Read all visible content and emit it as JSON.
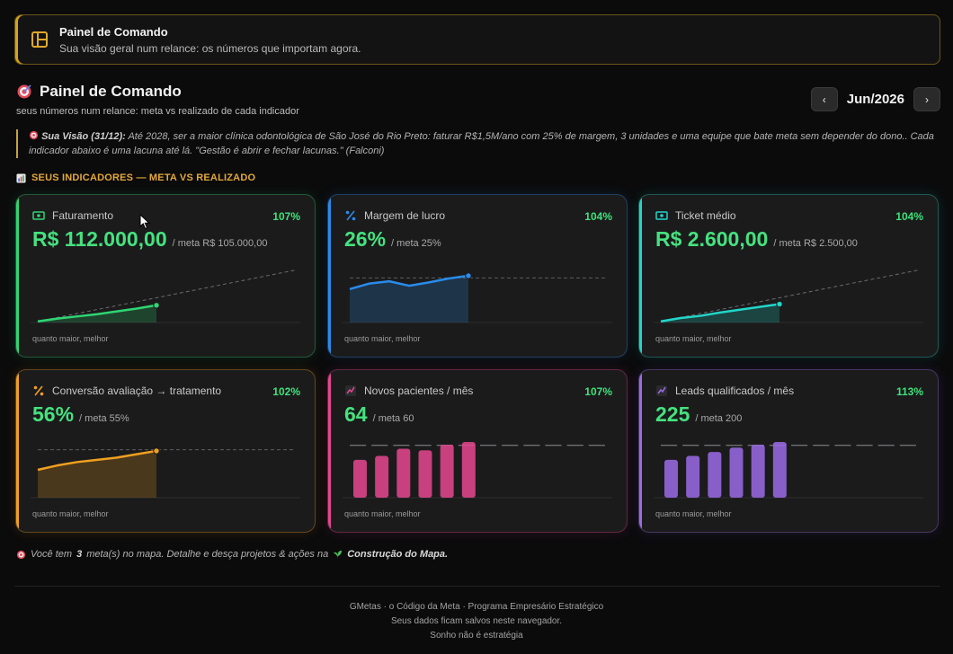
{
  "banner": {
    "title": "Painel de Comando",
    "subtitle": "Sua visão geral num relance: os números que importam agora."
  },
  "page": {
    "title": "Painel de Comando",
    "subtitle": "seus números num relance: meta vs realizado de cada indicador"
  },
  "month_nav": {
    "prev_label": "‹",
    "month": "Jun/2026",
    "next_label": "›"
  },
  "vision": {
    "label": "Sua Visão (31/12):",
    "text": "Até 2028, ser a maior clínica odontológica de São José do Rio Preto: faturar R$1,5M/ano com 25% de margem, 3 unidades e uma equipe que bate meta sem depender do dono.. Cada indicador abaixo é uma lacuna até lá. \"Gestão é abrir e fechar lacunas.\" (Falconi)"
  },
  "section_title": "SEUS INDICADORES — META VS REALIZADO",
  "kpis": [
    {
      "name": "Faturamento",
      "pct": "107%",
      "value": "R$ 112.000,00",
      "meta": "/ meta R$ 105.000,00",
      "foot": "quanto maior, melhor",
      "icon": "cash-icon",
      "color": "#2fd573",
      "chart": "line",
      "series": [
        0.02,
        0.07,
        0.11,
        0.15,
        0.2,
        0.25,
        0.31
      ],
      "trend": [
        0.02,
        0.94
      ]
    },
    {
      "name": "Margem de lucro",
      "pct": "104%",
      "value": "26%",
      "meta": "/ meta 25%",
      "foot": "quanto maior, melhor",
      "icon": "percent-icon",
      "color": "#2a8bea",
      "chart": "line",
      "series": [
        0.6,
        0.7,
        0.74,
        0.66,
        0.72,
        0.79,
        0.84
      ],
      "target_line": 0.8
    },
    {
      "name": "Ticket médio",
      "pct": "104%",
      "value": "R$ 2.600,00",
      "meta": "/ meta R$ 2.500,00",
      "foot": "quanto maior, melhor",
      "icon": "cash-icon",
      "color": "#22d6c8",
      "chart": "line",
      "series": [
        0.02,
        0.08,
        0.12,
        0.18,
        0.23,
        0.28,
        0.33
      ],
      "trend": [
        0.02,
        0.94
      ]
    },
    {
      "name": "Conversão avaliação → tratamento",
      "pct": "102%",
      "value": "56%",
      "meta": "/ meta 55%",
      "foot": "quanto maior, melhor",
      "icon": "percent-icon",
      "color": "#f0a020",
      "chart": "line",
      "series": [
        0.5,
        0.58,
        0.64,
        0.68,
        0.72,
        0.78,
        0.84
      ],
      "target_line": 0.86
    },
    {
      "name": "Novos pacientes / mês",
      "pct": "107%",
      "value": "64",
      "meta": "/ meta 60",
      "foot": "quanto maior, melhor",
      "icon": "chart-icon",
      "color": "#e6468f",
      "chart": "bar",
      "series": [
        0.68,
        0.75,
        0.88,
        0.85,
        0.95,
        1.0
      ],
      "target_line": 0.94,
      "slots": 12
    },
    {
      "name": "Leads qualificados / mês",
      "pct": "113%",
      "value": "225",
      "meta": "/ meta 200",
      "foot": "quanto maior, melhor",
      "icon": "chart-icon",
      "color": "#9b6be8",
      "chart": "bar",
      "series": [
        0.68,
        0.75,
        0.82,
        0.9,
        0.95,
        1.0
      ],
      "target_line": 0.94,
      "slots": 12
    }
  ],
  "footnote": {
    "prefix": "Você tem",
    "count": "3",
    "middle": "meta(s) no mapa. Detalhe e desça projetos & ações na",
    "link": "Construção do Mapa."
  },
  "footer": {
    "line1": "GMetas · o Código da Meta · Programa Empresário Estratégico",
    "line2": "Seus dados ficam salvos neste navegador.",
    "line3": "Sonho não é estratégia"
  }
}
